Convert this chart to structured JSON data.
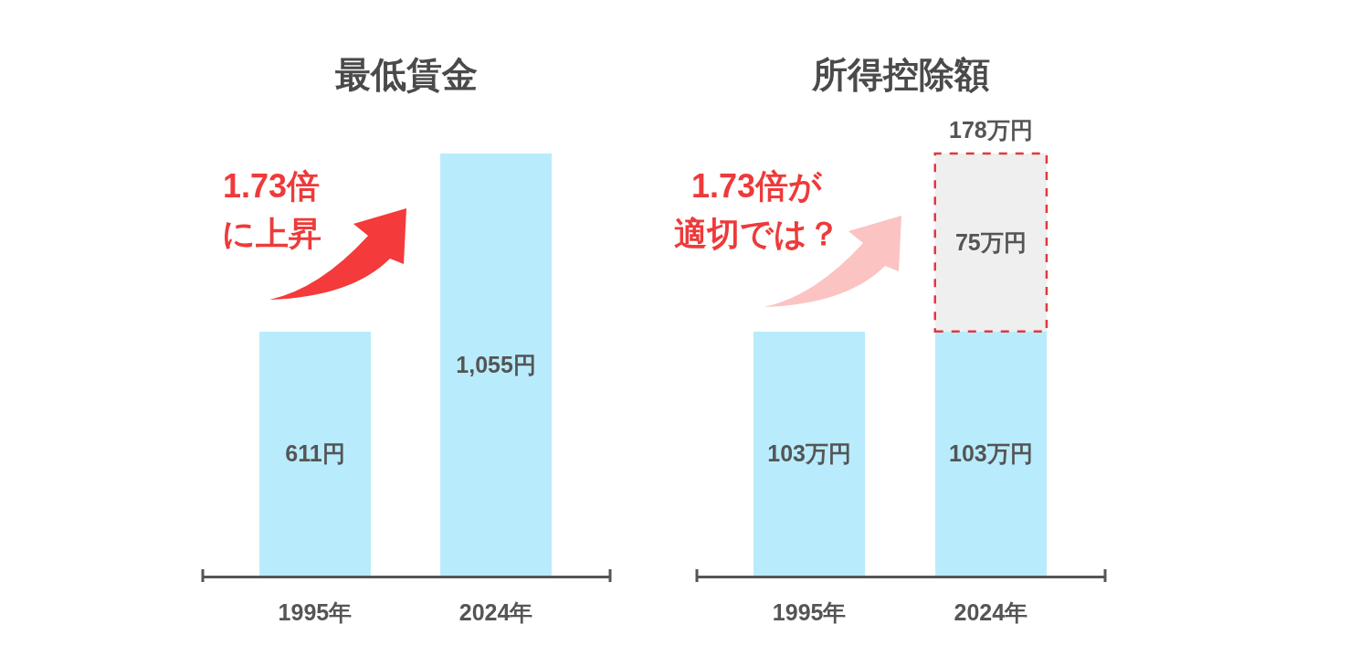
{
  "chart_data": [
    {
      "type": "bar",
      "title": "最低賃金",
      "categories": [
        "1995年",
        "2024年"
      ],
      "values": [
        611,
        1055
      ],
      "value_labels": [
        "611円",
        "1,055円"
      ],
      "color": "#b8ecfc",
      "tick_labels": "x",
      "annotations": [
        "1.73倍",
        "に上昇"
      ]
    },
    {
      "type": "bar",
      "title": "所得控除額",
      "categories": [
        "1995年",
        "2024年"
      ],
      "stacked": true,
      "series": [
        {
          "color": "#b8ecfc",
          "values": [
            103,
            103
          ],
          "value_labels": [
            "103万円",
            "103万円"
          ]
        },
        {
          "color": "#efefef",
          "values": [
            null,
            75
          ],
          "value_labels": [
            null,
            "75万円"
          ],
          "line_style": "dashed"
        }
      ],
      "totals": [
        null,
        "178万円"
      ],
      "tick_labels": "x",
      "annotations": [
        "1.73倍が",
        "適切では？"
      ]
    }
  ]
}
